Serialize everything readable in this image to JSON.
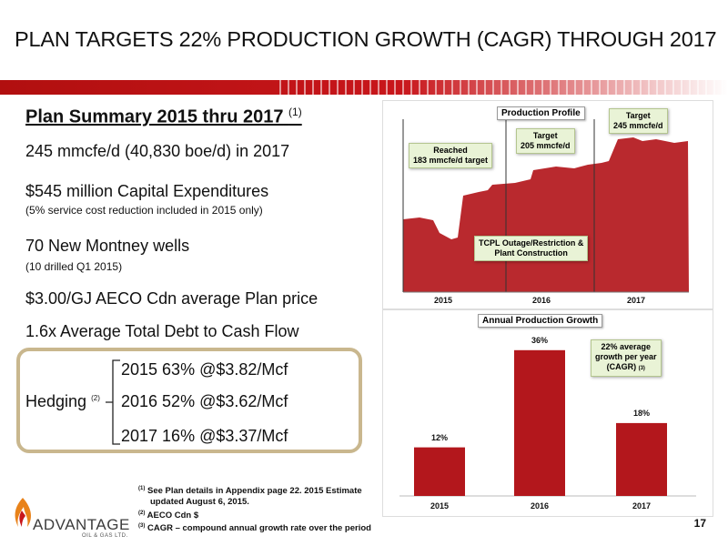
{
  "title": "PLAN TARGETS 22% PRODUCTION GROWTH (CAGR) THROUGH 2017",
  "summary": {
    "heading": "Plan Summary 2015 thru 2017",
    "heading_note": "(1)",
    "lines": [
      "245 mmcfe/d (40,830 boe/d) in 2017",
      "$545 million Capital Expenditures",
      "(5% service cost reduction included in 2015 only)",
      "70 New Montney wells",
      "(10 drilled Q1 2015)",
      "$3.00/GJ AECO Cdn average Plan price",
      "1.6x Average Total Debt to Cash Flow"
    ]
  },
  "hedging": {
    "label": "Hedging",
    "note": "(2)",
    "rows": [
      "2015 63% @$3.82/Mcf",
      "2016 52% @$3.62/Mcf",
      "2017 16% @$3.37/Mcf"
    ]
  },
  "colors": {
    "accent_red": "#c8161b",
    "chart_red": "#b3171c",
    "box_border": "#c9b78e"
  },
  "production_profile": {
    "title": "Production Profile",
    "callouts": {
      "reached": [
        "Reached",
        "183 mmcfe/d target"
      ],
      "target205": [
        "Target",
        "205 mmcfe/d"
      ],
      "target245": [
        "Target",
        "245 mmcfe/d"
      ],
      "outage": [
        "TCPL Outage/Restriction &",
        "Plant Construction"
      ]
    },
    "x_ticks": [
      "2015",
      "2016",
      "2017"
    ]
  },
  "chart_data": {
    "type": "bar",
    "title": "Annual Production Growth",
    "categories": [
      "2015",
      "2016",
      "2017"
    ],
    "values": [
      12,
      36,
      18
    ],
    "value_labels": [
      "12%",
      "36%",
      "18%"
    ],
    "ylim": [
      0,
      40
    ],
    "grid": false,
    "callout": [
      "22% average",
      "growth per year",
      "(CAGR)",
      "(3)"
    ]
  },
  "footnotes": [
    {
      "num": "(1)",
      "text": "See Plan details in Appendix page 22. 2015 Estimate"
    },
    {
      "num": "",
      "text": "updated August 6, 2015."
    },
    {
      "num": "(2)",
      "text": "AECO Cdn $"
    },
    {
      "num": "(3)",
      "text": "CAGR – compound annual growth rate over the period"
    }
  ],
  "page_number": "17",
  "logo": {
    "name": "ADVANTAGE",
    "sub": "OIL & GAS LTD."
  }
}
